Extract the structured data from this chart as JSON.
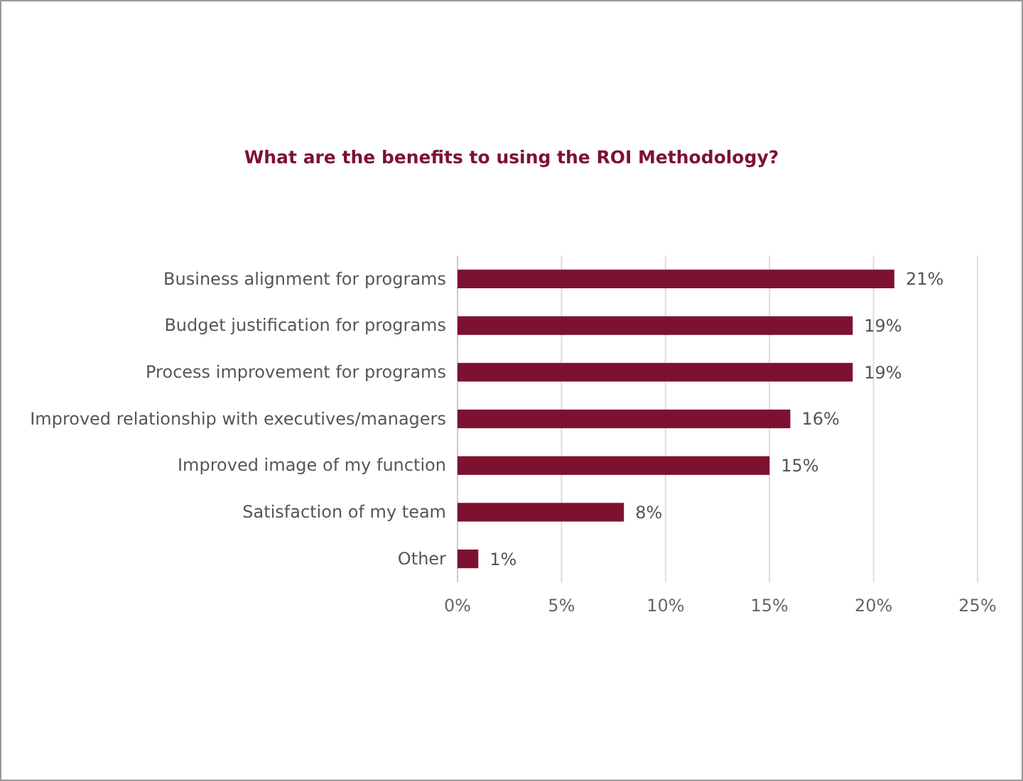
{
  "chart_data": {
    "type": "bar",
    "orientation": "horizontal",
    "title": "What are the benefits to using the ROI Methodology?",
    "categories": [
      "Business alignment for programs",
      "Budget justification for programs",
      "Process improvement for programs",
      "Improved relationship with executives/managers",
      "Improved image of my function",
      "Satisfaction of my team",
      "Other"
    ],
    "values": [
      21,
      19,
      19,
      16,
      15,
      8,
      1
    ],
    "value_labels": [
      "21%",
      "19%",
      "19%",
      "16%",
      "15%",
      "8%",
      "1%"
    ],
    "color": "#7d1230",
    "xlim": [
      0,
      25
    ],
    "xticks": [
      {
        "value": 0,
        "label": "0%"
      },
      {
        "value": 5,
        "label": "5%"
      },
      {
        "value": 10,
        "label": "10%"
      },
      {
        "value": 15,
        "label": "15%"
      },
      {
        "value": 20,
        "label": "20%"
      },
      {
        "value": 25,
        "label": "25%"
      }
    ],
    "grid": "x"
  }
}
